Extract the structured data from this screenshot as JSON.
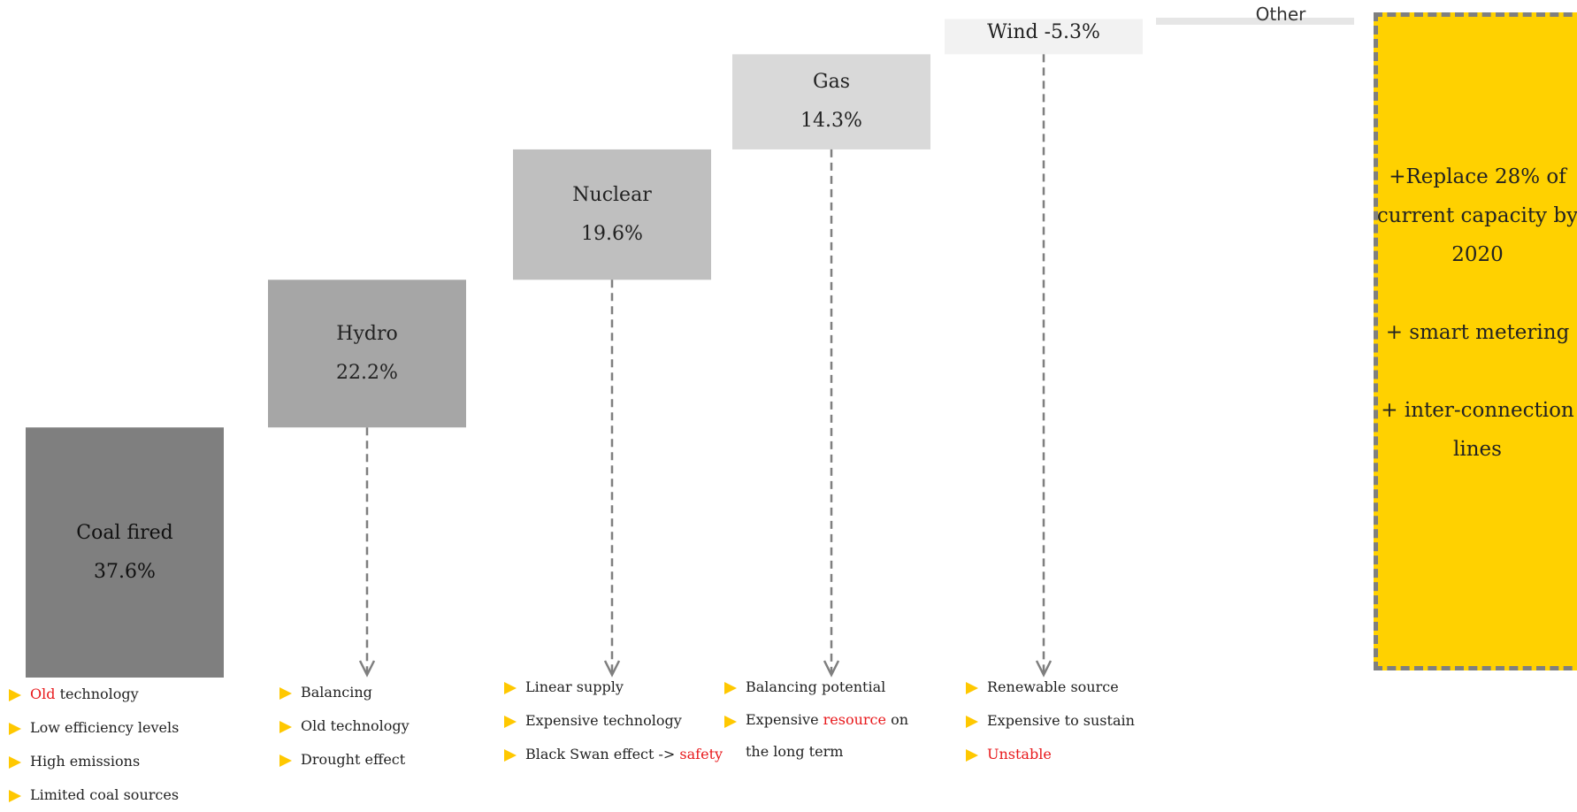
{
  "chart_data": {
    "type": "bar",
    "subtype": "waterfall",
    "categories": [
      "Coal fired",
      "Hydro",
      "Nuclear",
      "Gas",
      "Wind",
      "Other"
    ],
    "value_labels": [
      "37.6%",
      "22.2%",
      "19.6%",
      "14.3%",
      "5.3%",
      ""
    ],
    "values": [
      37.6,
      22.2,
      19.6,
      14.3,
      5.3,
      1.0
    ],
    "ylim": [
      0,
      100
    ],
    "colors": [
      "#7f7f7f",
      "#a6a6a6",
      "#bfbfbf",
      "#d9d9d9",
      "#f2f2f2",
      "#e6e6e6"
    ],
    "title": "",
    "xlabel": "",
    "ylabel": "",
    "grid": false,
    "legend": "none"
  },
  "bullets": [
    [
      [
        {
          "t": "Old",
          "hl": true
        },
        {
          "t": " technology"
        }
      ],
      [
        {
          "t": "Low efficiency levels"
        }
      ],
      [
        {
          "t": "High emissions"
        }
      ],
      [
        {
          "t": "Limited coal sources"
        }
      ]
    ],
    [
      [
        {
          "t": "Balancing"
        }
      ],
      [
        {
          "t": "Old technology"
        }
      ],
      [
        {
          "t": "Drought effect"
        }
      ]
    ],
    [
      [
        {
          "t": "Linear supply"
        }
      ],
      [
        {
          "t": "Expensive technology"
        }
      ],
      [
        {
          "t": "Black Swan effect -> "
        },
        {
          "t": "safety",
          "hl": true
        }
      ]
    ],
    [
      [
        {
          "t": "Balancing potential"
        }
      ],
      [
        {
          "t": "Expensive "
        },
        {
          "t": "resource",
          "hl": true
        },
        {
          "t": " on the long term"
        }
      ]
    ],
    [
      [
        {
          "t": "Renewable source"
        }
      ],
      [
        {
          "t": "Expensive to sustain"
        }
      ],
      [
        {
          "t": "Unstable",
          "hl": true
        }
      ]
    ]
  ],
  "callout": {
    "lines": [
      "+Replace 28% of current capacity by 2020",
      "+ smart metering",
      "+ inter-connection lines"
    ],
    "fill": "#FFD100"
  },
  "colors": {
    "highlight": "#e8191c",
    "bullet": "#FFC800",
    "arrow": "#7f7f7f"
  }
}
